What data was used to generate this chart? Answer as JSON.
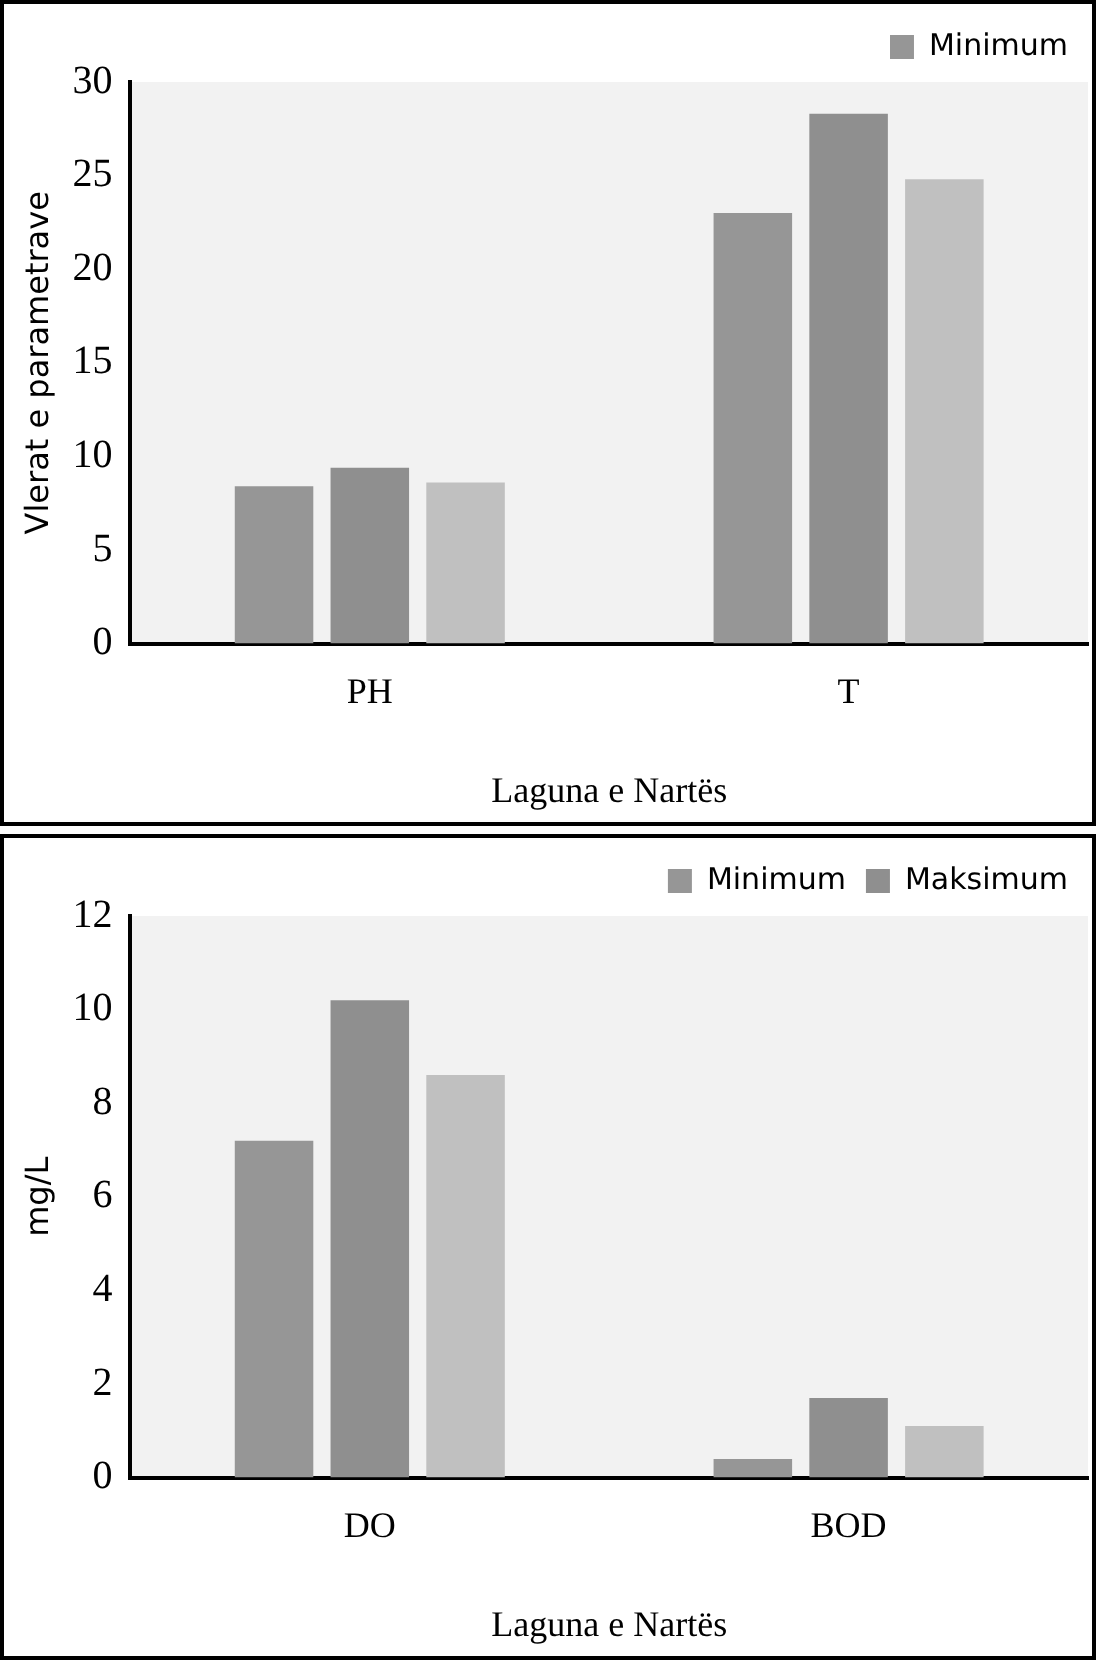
{
  "chart_data": [
    {
      "type": "bar",
      "categories": [
        "PH",
        "T"
      ],
      "xlabel": "Laguna e Nartës",
      "ylabel": "Vlerat e parametrave",
      "ylim": [
        0,
        30
      ],
      "yticks": [
        0,
        5,
        10,
        15,
        20,
        25,
        30
      ],
      "grid": false,
      "legend": "top right",
      "series": [
        {
          "name": "Minimum",
          "color": "#969696",
          "values": [
            8.4,
            23.0
          ]
        },
        {
          "color": "#8f8f8f",
          "values": [
            9.4,
            28.3
          ]
        },
        {
          "color": "#c0c0c0",
          "values": [
            8.6,
            24.8
          ]
        }
      ]
    },
    {
      "type": "bar",
      "categories": [
        "DO",
        "BOD"
      ],
      "xlabel": "Laguna e Nartës",
      "ylabel": "mg/L",
      "ylim": [
        0,
        12
      ],
      "yticks": [
        0,
        2,
        4,
        6,
        8,
        10,
        12
      ],
      "grid": false,
      "legend": "top right",
      "series": [
        {
          "name": "Minimum",
          "color": "#969696",
          "values": [
            7.2,
            0.4
          ]
        },
        {
          "name": "Maksimum",
          "color": "#8f8f8f",
          "values": [
            10.2,
            1.7
          ]
        },
        {
          "color": "#c0c0c0",
          "values": [
            8.6,
            1.1
          ]
        }
      ]
    }
  ]
}
